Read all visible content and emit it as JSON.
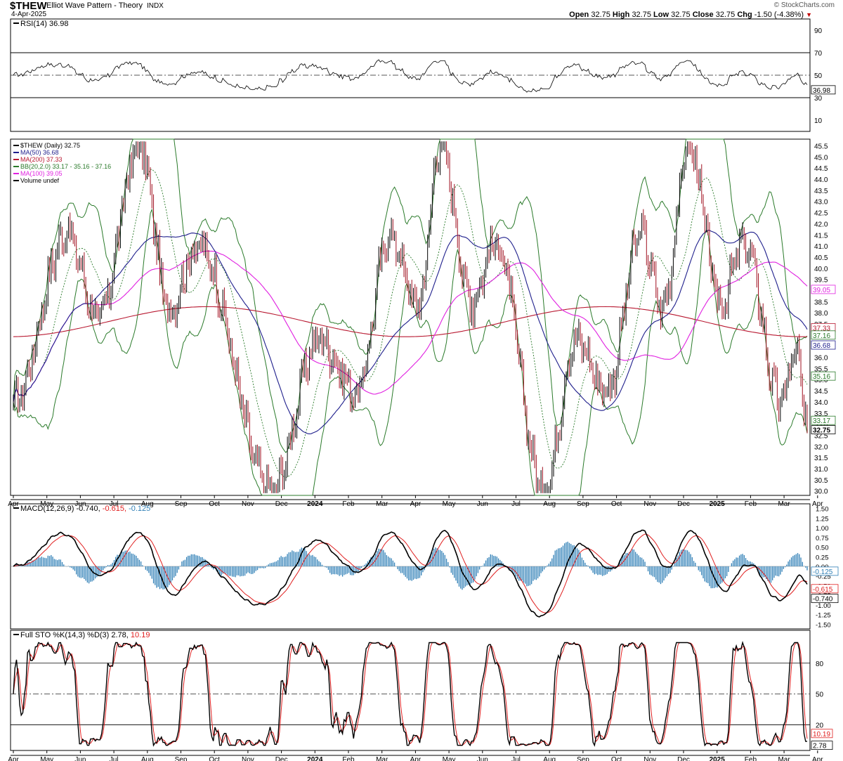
{
  "header": {
    "symbol": "$THEW",
    "title": "Elliot Wave Pattern - Theory",
    "exchange": "INDX",
    "date": "4-Apr-2025",
    "brand": "© StockCharts.com",
    "open_label": "Open",
    "open": "32.75",
    "high_label": "High",
    "high": "32.75",
    "low_label": "Low",
    "low": "32.75",
    "close_label": "Close",
    "close": "32.75",
    "chg_label": "Chg",
    "chg": "-1.50 (-4.38%)"
  },
  "colors": {
    "price": "#a01020",
    "ma50": "#1f1f8c",
    "ma200": "#b81830",
    "ma100": "#e020e0",
    "bb": "#2a7a2a",
    "bb_mid": "#2a7a2a",
    "macd": "#000000",
    "signal": "#e02020",
    "hist": "#2f7fb6",
    "stoK": "#000000",
    "stoD": "#e02020",
    "rsi": "#000000"
  },
  "x_axis": {
    "months": [
      "Apr",
      "May",
      "Jun",
      "Jul",
      "Aug",
      "Sep",
      "Oct",
      "Nov",
      "Dec",
      "2024",
      "Feb",
      "Mar",
      "Apr",
      "May",
      "Jun",
      "Jul",
      "Aug",
      "Sep",
      "Oct",
      "Nov",
      "Dec",
      "2025",
      "Feb",
      "Mar",
      "Apr"
    ],
    "bold_labels": [
      "2024",
      "2025"
    ]
  },
  "rsi_panel": {
    "legend": "RSI(14) 36.98",
    "ticks": [
      "90",
      "70",
      "50",
      "30",
      "10"
    ],
    "last_value": "36.98"
  },
  "price_panel": {
    "legend": [
      {
        "text": "$THEW (Daily) 32.75",
        "color": "#000000"
      },
      {
        "text": "MA(50) 36.68",
        "color": "#1f1f8c"
      },
      {
        "text": "MA(200) 37.33",
        "color": "#b81830"
      },
      {
        "text": "BB(20,2.0) 33.17 - 35.16 - 37.16",
        "color": "#2a7a2a"
      },
      {
        "text": "MA(100) 39.05",
        "color": "#e020e0"
      },
      {
        "text": "Volume undef",
        "color": "#000000"
      }
    ],
    "ticks": [
      "45.5",
      "45.0",
      "44.5",
      "44.0",
      "43.5",
      "43.0",
      "42.5",
      "42.0",
      "41.5",
      "41.0",
      "40.5",
      "40.0",
      "39.5",
      "39.0",
      "38.5",
      "38.0",
      "37.5",
      "37.0",
      "36.5",
      "36.0",
      "35.5",
      "35.0",
      "34.5",
      "34.0",
      "33.5",
      "33.0",
      "32.5",
      "32.0",
      "31.5",
      "31.0",
      "30.5",
      "30.0"
    ],
    "value_tags": [
      {
        "value": "39.05",
        "color": "#e020e0"
      },
      {
        "value": "37.33",
        "color": "#b81830"
      },
      {
        "value": "37.16",
        "color": "#2a7a2a"
      },
      {
        "value": "36.68",
        "color": "#1f1f8c"
      },
      {
        "value": "35.16",
        "color": "#2a7a2a"
      },
      {
        "value": "33.17",
        "color": "#2a7a2a"
      },
      {
        "value": "32.75",
        "color": "#000000"
      }
    ]
  },
  "macd_panel": {
    "legend_main": "MACD(12,26,9) -0.740,",
    "legend_signal": "-0.615,",
    "legend_hist": "-0.125",
    "ticks": [
      "1.50",
      "1.25",
      "1.00",
      "0.75",
      "0.50",
      "0.25",
      "0.00",
      "-0.25",
      "-0.50",
      "-0.75",
      "-1.00",
      "-1.25",
      "-1.50"
    ],
    "value_tags": [
      {
        "value": "-0.125",
        "color": "#2f7fb6"
      },
      {
        "value": "-0.615",
        "color": "#e02020"
      },
      {
        "value": "-0.740",
        "color": "#000000"
      }
    ]
  },
  "sto_panel": {
    "legend_main": "Full STO %K(14,3) %D(3) 2.78,",
    "legend_d": "10.19",
    "ticks": [
      "80",
      "50",
      "20"
    ],
    "value_tags": [
      {
        "value": "10.19",
        "color": "#e02020"
      },
      {
        "value": "2.78",
        "color": "#000000"
      }
    ]
  },
  "chart_data": {
    "type": "line",
    "title": "$THEW Elliot Wave Pattern - Theory",
    "x_range": [
      "2023-04-03",
      "2025-04-04"
    ],
    "series": [
      {
        "name": "$THEW (Daily)",
        "last": 32.75,
        "key_points": [
          [
            "2023-04-03",
            34.0
          ],
          [
            "2023-05-22",
            41.5
          ],
          [
            "2023-06-20",
            37.8
          ],
          [
            "2023-07-28",
            45.5
          ],
          [
            "2023-08-25",
            38.2
          ],
          [
            "2023-09-20",
            41.0
          ],
          [
            "2023-11-27",
            30.0
          ],
          [
            "2024-01-10",
            36.8
          ],
          [
            "2024-02-14",
            34.5
          ],
          [
            "2024-03-15",
            41.5
          ],
          [
            "2024-04-10",
            38.3
          ],
          [
            "2024-05-01",
            45.5
          ],
          [
            "2024-05-29",
            38.5
          ],
          [
            "2024-06-20",
            41.2
          ],
          [
            "2024-08-05",
            30.0
          ],
          [
            "2024-09-03",
            36.8
          ],
          [
            "2024-10-01",
            34.5
          ],
          [
            "2024-11-01",
            41.5
          ],
          [
            "2024-11-22",
            38.3
          ],
          [
            "2024-12-16",
            45.5
          ],
          [
            "2025-01-14",
            38.5
          ],
          [
            "2025-02-05",
            41.2
          ],
          [
            "2025-03-10",
            34.0
          ],
          [
            "2025-03-25",
            36.3
          ],
          [
            "2025-04-04",
            32.75
          ]
        ]
      },
      {
        "name": "MA(50)",
        "last": 36.68
      },
      {
        "name": "MA(200)",
        "last": 37.33
      },
      {
        "name": "MA(100)",
        "last": 39.05
      },
      {
        "name": "BB(20,2.0)",
        "lower": 33.17,
        "middle": 35.16,
        "upper": 37.16
      },
      {
        "name": "RSI(14)",
        "last": 36.98,
        "ylim": [
          0,
          100
        ],
        "levels": [
          70,
          50,
          30
        ]
      },
      {
        "name": "MACD(12,26,9)",
        "macd": -0.74,
        "signal": -0.615,
        "histogram": -0.125,
        "ylim": [
          -1.5,
          1.5
        ]
      },
      {
        "name": "Full STO %K(14,3) %D(3)",
        "k": 2.78,
        "d": 10.19,
        "ylim": [
          0,
          100
        ],
        "levels": [
          80,
          50,
          20
        ]
      }
    ],
    "ylim_price": [
      30.0,
      45.5
    ],
    "grid": false,
    "legend": "top-left"
  }
}
